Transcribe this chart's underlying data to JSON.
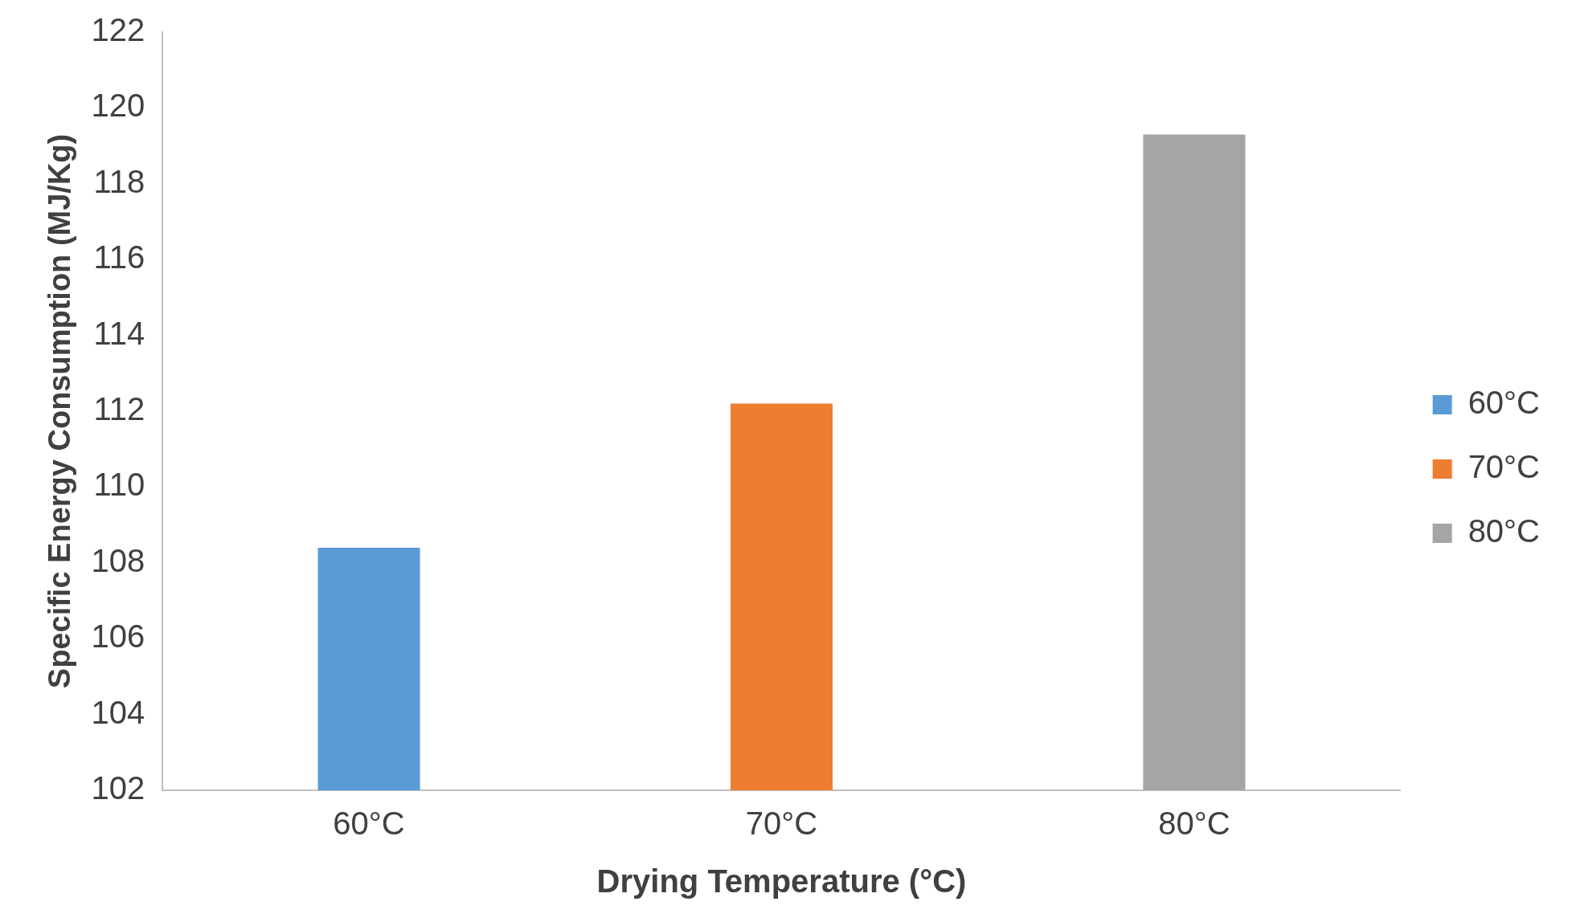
{
  "chart_data": {
    "type": "bar",
    "xlabel": "Drying Temperature (°C)",
    "ylabel": "Specific Energy Consumption (MJ/Kg)",
    "categories": [
      "60°C",
      "70°C",
      "80°C"
    ],
    "series": [
      {
        "name": "60°C",
        "color": "#5b9bd5",
        "values": [
          108.4,
          null,
          null
        ]
      },
      {
        "name": "70°C",
        "color": "#ed7d31",
        "values": [
          null,
          112.2,
          null
        ]
      },
      {
        "name": "80°C",
        "color": "#a5a5a5",
        "values": [
          null,
          null,
          119.3
        ]
      }
    ],
    "ylim": [
      102,
      122
    ],
    "yticks": [
      102,
      104,
      106,
      108,
      110,
      112,
      114,
      116,
      118,
      120,
      122
    ],
    "grid": false,
    "legend": "right"
  }
}
